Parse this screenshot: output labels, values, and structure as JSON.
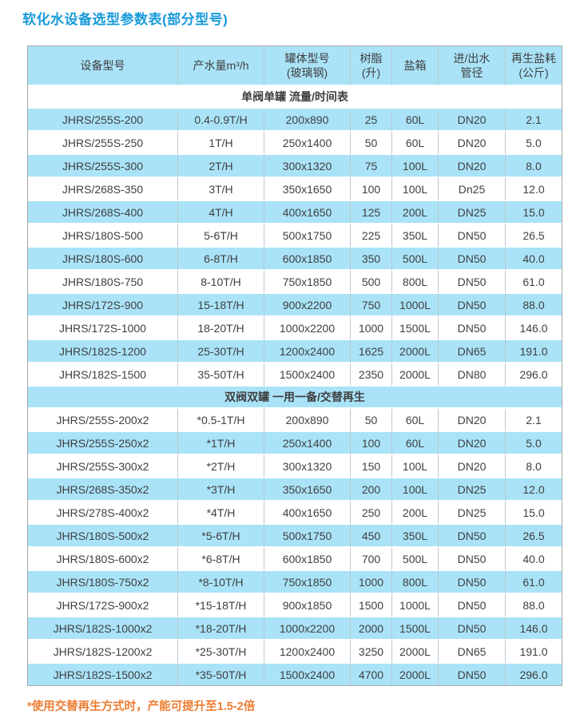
{
  "title": "软化水设备选型参数表(部分型号)",
  "footnote": "*使用交替再生方式时，产能可提升至1.5-2倍",
  "colors": {
    "title_blue": "#189ad9",
    "row_blue": "#aae3f8",
    "footnote_orange": "#ed7d31",
    "text_dark": "#3f3f3f"
  },
  "table": {
    "columns": [
      [
        "设备型号"
      ],
      [
        "产水量m³/h"
      ],
      [
        "罐体型号",
        "(玻璃钢)"
      ],
      [
        "树脂",
        "(升)"
      ],
      [
        "盐箱"
      ],
      [
        "进/出水",
        "管径"
      ],
      [
        "再生盐耗",
        "(公斤)"
      ]
    ],
    "sections": [
      {
        "header": "单阀单罐 流量/时间表",
        "header_shaded": false,
        "first_row_shaded": true,
        "rows": [
          [
            "JHRS/255S-200",
            "0.4-0.9T/H",
            "200x890",
            "25",
            "60L",
            "DN20",
            "2.1"
          ],
          [
            "JHRS/255S-250",
            "1T/H",
            "250x1400",
            "50",
            "60L",
            "DN20",
            "5.0"
          ],
          [
            "JHRS/255S-300",
            "2T/H",
            "300x1320",
            "75",
            "100L",
            "DN20",
            "8.0"
          ],
          [
            "JHRS/268S-350",
            "3T/H",
            "350x1650",
            "100",
            "100L",
            "Dn25",
            "12.0"
          ],
          [
            "JHRS/268S-400",
            "4T/H",
            "400x1650",
            "125",
            "200L",
            "DN25",
            "15.0"
          ],
          [
            "JHRS/180S-500",
            "5-6T/H",
            "500x1750",
            "225",
            "350L",
            "DN50",
            "26.5"
          ],
          [
            "JHRS/180S-600",
            "6-8T/H",
            "600x1850",
            "350",
            "500L",
            "DN50",
            "40.0"
          ],
          [
            "JHRS/180S-750",
            "8-10T/H",
            "750x1850",
            "500",
            "800L",
            "DN50",
            "61.0"
          ],
          [
            "JHRS/172S-900",
            "15-18T/H",
            "900x2200",
            "750",
            "1000L",
            "DN50",
            "88.0"
          ],
          [
            "JHRS/172S-1000",
            "18-20T/H",
            "1000x2200",
            "1000",
            "1500L",
            "DN50",
            "146.0"
          ],
          [
            "JHRS/182S-1200",
            "25-30T/H",
            "1200x2400",
            "1625",
            "2000L",
            "DN65",
            "191.0"
          ],
          [
            "JHRS/182S-1500",
            "35-50T/H",
            "1500x2400",
            "2350",
            "2000L",
            "DN80",
            "296.0"
          ]
        ]
      },
      {
        "header": "双阀双罐 一用一备/交替再生",
        "header_shaded": true,
        "first_row_shaded": false,
        "rows": [
          [
            "JHRS/255S-200x2",
            "*0.5-1T/H",
            "200x890",
            "50",
            "60L",
            "DN20",
            "2.1"
          ],
          [
            "JHRS/255S-250x2",
            "*1T/H",
            "250x1400",
            "100",
            "60L",
            "DN20",
            "5.0"
          ],
          [
            "JHRS/255S-300x2",
            "*2T/H",
            "300x1320",
            "150",
            "100L",
            "DN20",
            "8.0"
          ],
          [
            "JHRS/268S-350x2",
            "*3T/H",
            "350x1650",
            "200",
            "100L",
            "DN25",
            "12.0"
          ],
          [
            "JHRS/278S-400x2",
            "*4T/H",
            "400x1650",
            "250",
            "200L",
            "DN25",
            "15.0"
          ],
          [
            "JHRS/180S-500x2",
            "*5-6T/H",
            "500x1750",
            "450",
            "350L",
            "DN50",
            "26.5"
          ],
          [
            "JHRS/180S-600x2",
            "*6-8T/H",
            "600x1850",
            "700",
            "500L",
            "DN50",
            "40.0"
          ],
          [
            "JHRS/180S-750x2",
            "*8-10T/H",
            "750x1850",
            "1000",
            "800L",
            "DN50",
            "61.0"
          ],
          [
            "JHRS/172S-900x2",
            "*15-18T/H",
            "900x1850",
            "1500",
            "1000L",
            "DN50",
            "88.0"
          ],
          [
            "JHRS/182S-1000x2",
            "*18-20T/H",
            "1000x2200",
            "2000",
            "1500L",
            "DN50",
            "146.0"
          ],
          [
            "JHRS/182S-1200x2",
            "*25-30T/H",
            "1200x2400",
            "3250",
            "2000L",
            "DN65",
            "191.0"
          ],
          [
            "JHRS/182S-1500x2",
            "*35-50T/H",
            "1500x2400",
            "4700",
            "2000L",
            "DN50",
            "296.0"
          ]
        ]
      }
    ]
  }
}
